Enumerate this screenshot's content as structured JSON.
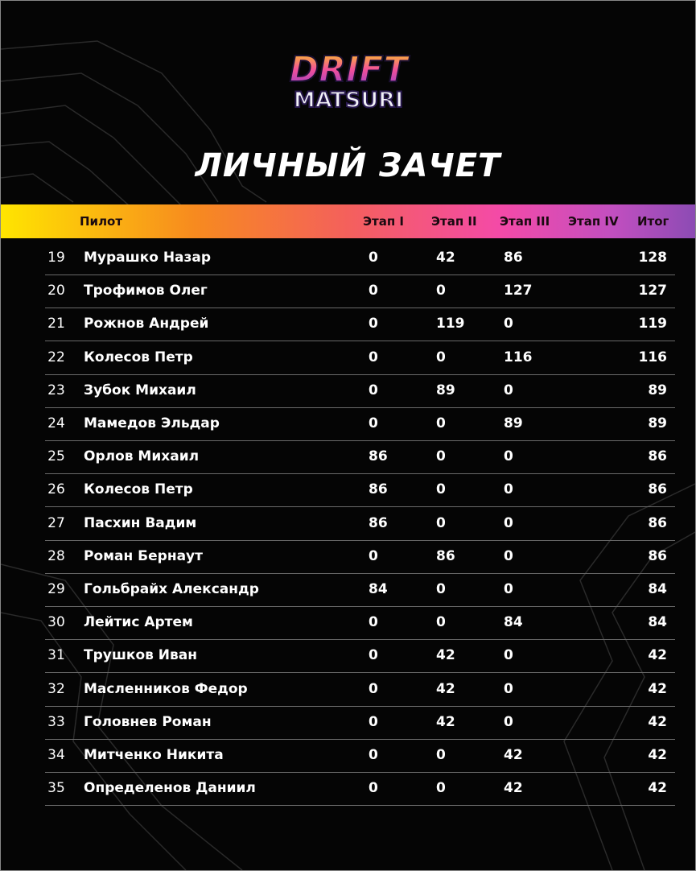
{
  "brand": {
    "logo_text_top": "DRIFT",
    "logo_text_bottom": "MATSURI"
  },
  "title": "ЛИЧНЫЙ ЗАЧЕТ",
  "colors": {
    "header_gradient": [
      "#ffe500",
      "#f78a1f",
      "#f4605c",
      "#f44aa8",
      "#8c4bb4"
    ],
    "background": "#050505"
  },
  "table": {
    "headers": {
      "pilot": "Пилот",
      "stage1": "Этап I",
      "stage2": "Этап II",
      "stage3": "Этап III",
      "stage4": "Этап IV",
      "total": "Итог"
    },
    "rows": [
      {
        "rank": "19",
        "name": "Мурашко Назар",
        "s1": "0",
        "s2": "42",
        "s3": "86",
        "s4": "",
        "total": "128"
      },
      {
        "rank": "20",
        "name": "Трофимов Олег",
        "s1": "0",
        "s2": "0",
        "s3": "127",
        "s4": "",
        "total": "127"
      },
      {
        "rank": "21",
        "name": "Рожнов Андрей",
        "s1": "0",
        "s2": "119",
        "s3": "0",
        "s4": "",
        "total": "119"
      },
      {
        "rank": "22",
        "name": "Колесов Петр",
        "s1": "0",
        "s2": "0",
        "s3": "116",
        "s4": "",
        "total": "116"
      },
      {
        "rank": "23",
        "name": "Зубок Михаил",
        "s1": "0",
        "s2": "89",
        "s3": "0",
        "s4": "",
        "total": "89"
      },
      {
        "rank": "24",
        "name": "Мамедов Эльдар",
        "s1": "0",
        "s2": "0",
        "s3": "89",
        "s4": "",
        "total": "89"
      },
      {
        "rank": "25",
        "name": "Орлов Михаил",
        "s1": "86",
        "s2": "0",
        "s3": "0",
        "s4": "",
        "total": "86"
      },
      {
        "rank": "26",
        "name": "Колесов Петр",
        "s1": "86",
        "s2": "0",
        "s3": "0",
        "s4": "",
        "total": "86"
      },
      {
        "rank": "27",
        "name": "Пасхин Вадим",
        "s1": "86",
        "s2": "0",
        "s3": "0",
        "s4": "",
        "total": "86"
      },
      {
        "rank": "28",
        "name": "Роман Бернаут",
        "s1": "0",
        "s2": "86",
        "s3": "0",
        "s4": "",
        "total": "86"
      },
      {
        "rank": "29",
        "name": "Гольбрайх Александр",
        "s1": "84",
        "s2": "0",
        "s3": "0",
        "s4": "",
        "total": "84"
      },
      {
        "rank": "30",
        "name": "Лейтис Артем",
        "s1": "0",
        "s2": "0",
        "s3": "84",
        "s4": "",
        "total": "84"
      },
      {
        "rank": "31",
        "name": "Трушков Иван",
        "s1": "0",
        "s2": "42",
        "s3": "0",
        "s4": "",
        "total": "42"
      },
      {
        "rank": "32",
        "name": "Масленников Федор",
        "s1": "0",
        "s2": "42",
        "s3": "0",
        "s4": "",
        "total": "42"
      },
      {
        "rank": "33",
        "name": "Головнев Роман",
        "s1": "0",
        "s2": "42",
        "s3": "0",
        "s4": "",
        "total": "42"
      },
      {
        "rank": "34",
        "name": "Митченко Никита",
        "s1": "0",
        "s2": "0",
        "s3": "42",
        "s4": "",
        "total": "42"
      },
      {
        "rank": "35",
        "name": "Определенов Даниил",
        "s1": "0",
        "s2": "0",
        "s3": "42",
        "s4": "",
        "total": "42"
      }
    ]
  }
}
